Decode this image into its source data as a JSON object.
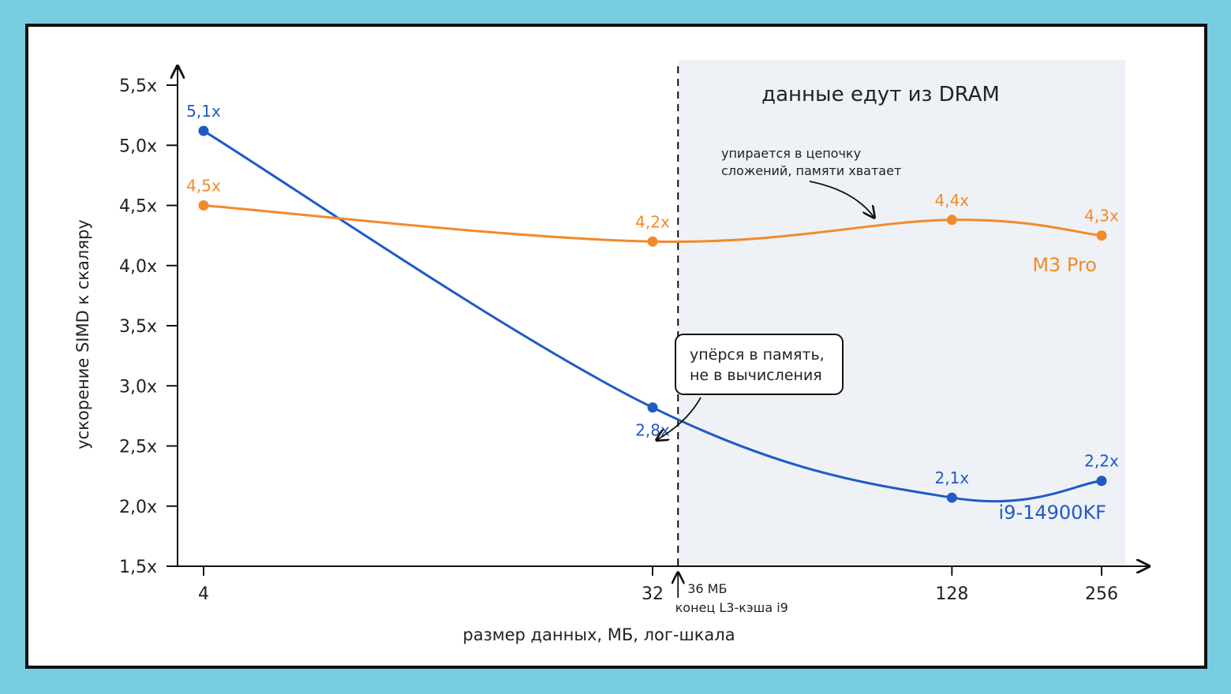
{
  "colors": {
    "background": "#79cde0",
    "panel": "#ffffff",
    "blue_series": "#1f5bc4",
    "orange_series": "#f28a2a",
    "dram_region": "#eef1f6"
  },
  "chart_data": {
    "type": "line",
    "xlabel": "размер данных, МБ, лог-шкала",
    "ylabel": "ускорение SIMD к скаляру",
    "x_scale": "log",
    "xlim": [
      3.5,
      300
    ],
    "ylim": [
      1.5,
      5.6
    ],
    "x_ticks": [
      4,
      32,
      128,
      256
    ],
    "x_tick_labels": [
      "4",
      "32",
      "128",
      "256"
    ],
    "y_ticks": [
      1.5,
      2.0,
      2.5,
      3.0,
      3.5,
      4.0,
      4.5,
      5.0,
      5.5
    ],
    "y_tick_labels": [
      "1,5x",
      "2,0x",
      "2,5x",
      "3,0x",
      "3,5x",
      "4,0x",
      "4,5x",
      "5,0x",
      "5,5x"
    ],
    "series": [
      {
        "name": "i9-14900KF",
        "color": "#1f5bc4",
        "x": [
          4,
          32,
          128,
          256
        ],
        "values": [
          5.12,
          2.82,
          2.07,
          2.21
        ],
        "labels": [
          "5,1x",
          "2,8x",
          "2,1x",
          "2,2x"
        ],
        "label_pos": [
          "above",
          "below",
          "above",
          "above"
        ]
      },
      {
        "name": "M3 Pro",
        "color": "#f28a2a",
        "x": [
          4,
          32,
          128,
          256
        ],
        "values": [
          4.5,
          4.2,
          4.38,
          4.25
        ],
        "labels": [
          "4,5x",
          "4,2x",
          "4,4x",
          "4,3x"
        ],
        "label_pos": [
          "above",
          "above",
          "above",
          "above"
        ]
      }
    ],
    "marker": {
      "x": 36,
      "label_line1": "36 МБ",
      "label_line2": "конец L3-кэша i9"
    },
    "region": {
      "from_x": 36,
      "title": "данные едут из DRAM"
    },
    "annotations": {
      "orange_note": [
        "упирается в цепочку",
        "сложений, памяти хватает"
      ],
      "blue_note": [
        "упёрся в память,",
        "не в вычисления"
      ]
    }
  }
}
